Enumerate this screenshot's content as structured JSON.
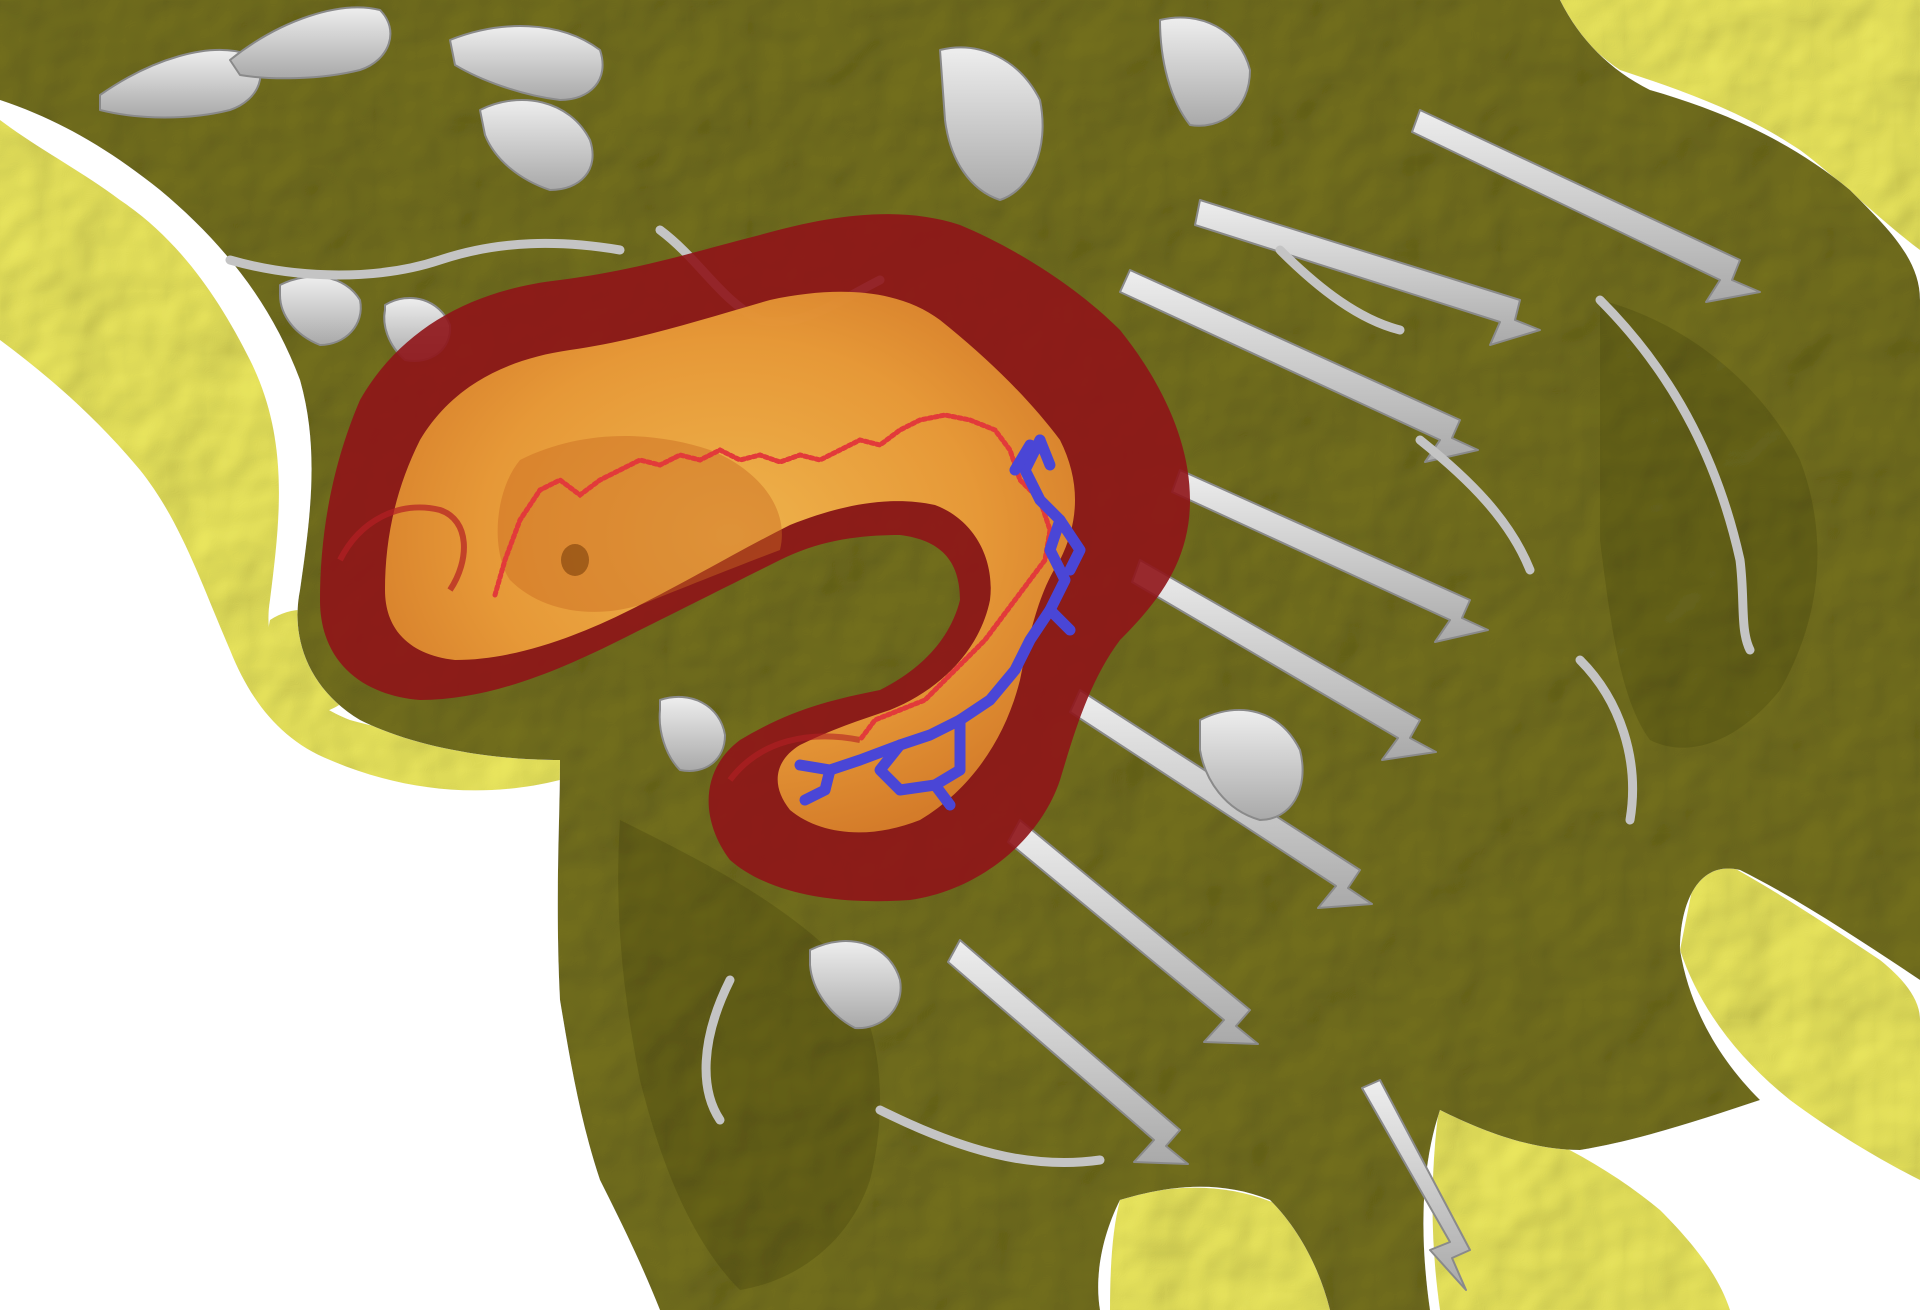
{
  "scene": {
    "subject": "protein-molecular-surface-with-ligand-tunnel",
    "colors": {
      "background": "#ffffff",
      "surface_dark": "#6e6a1e",
      "surface_mid": "#807c26",
      "surface_shadow": "#565314",
      "surface_exposed": "#f2ee62",
      "ribbon": "#c8c8c8",
      "ribbon_edge": "#8e8e8e",
      "tunnel_outer": "#8f1418",
      "tunnel_inner": "#f0a838",
      "path_trace": "#e23a3a",
      "ligand": "#4a46d6"
    }
  }
}
